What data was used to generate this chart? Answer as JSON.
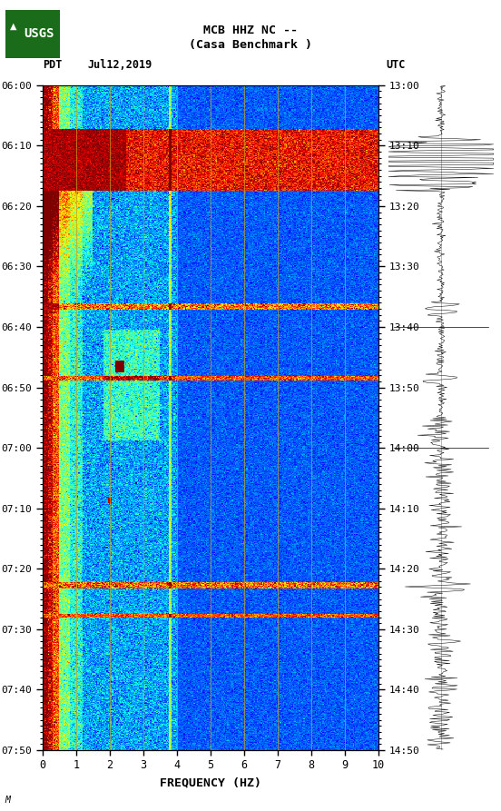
{
  "title_line1": "MCB HHZ NC --",
  "title_line2": "(Casa Benchmark )",
  "left_label": "PDT",
  "date_label": "Jul12,2019",
  "right_label": "UTC",
  "xlabel": "FREQUENCY (HZ)",
  "freq_min": 0,
  "freq_max": 10,
  "time_left_labels": [
    "06:00",
    "06:10",
    "06:20",
    "06:30",
    "06:40",
    "06:50",
    "07:00",
    "07:10",
    "07:20",
    "07:30",
    "07:40",
    "07:50"
  ],
  "time_right_labels": [
    "13:00",
    "13:10",
    "13:20",
    "13:30",
    "13:40",
    "13:50",
    "14:00",
    "14:10",
    "14:20",
    "14:30",
    "14:40",
    "14:50"
  ],
  "freq_ticks": [
    0,
    1,
    2,
    3,
    4,
    5,
    6,
    7,
    8,
    9,
    10
  ],
  "grid_freq_lines": [
    1,
    2,
    3,
    4,
    5,
    6,
    7,
    8,
    9
  ],
  "background_color": "#ffffff",
  "colormap": "jet",
  "vmin": -200,
  "vmax": -60,
  "figsize": [
    5.52,
    8.93
  ],
  "dpi": 100,
  "annotation": "M"
}
